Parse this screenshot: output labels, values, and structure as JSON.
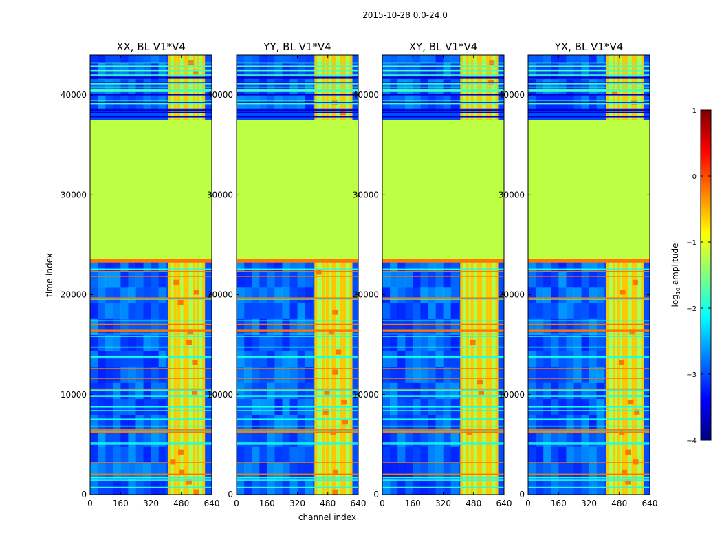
{
  "figure_title": "2015-10-28 0.0-24.0",
  "chart_data": {
    "type": "heatmap",
    "title": "2015-10-28 0.0-24.0",
    "xlabel": "channel index",
    "ylabel": "time index",
    "xlim": [
      0,
      640
    ],
    "ylim": [
      0,
      44000
    ],
    "x_ticks": [
      0,
      160,
      320,
      480,
      640
    ],
    "y_ticks": [
      0,
      10000,
      20000,
      30000,
      40000
    ],
    "panels": [
      {
        "title": "XX, BL V1*V4",
        "bright_columns": [
          410,
          440,
          460,
          490,
          505,
          540,
          560,
          590
        ]
      },
      {
        "title": "YY, BL V1*V4",
        "bright_columns": [
          410,
          450,
          470,
          500,
          510,
          545,
          560,
          595
        ]
      },
      {
        "title": "XY, BL V1*V4",
        "bright_columns": [
          410,
          440,
          465,
          495,
          510,
          545,
          560,
          595
        ]
      },
      {
        "title": "YX, BL V1*V4",
        "bright_columns": [
          410,
          445,
          470,
          495,
          510,
          545,
          560,
          595
        ]
      }
    ],
    "flagged_time_range": [
      23500,
      37500
    ],
    "flagged_value": -1.2,
    "background_value": -3.0,
    "high_amplitude_channels": [
      410,
      600
    ],
    "colorbar": {
      "label": "log10 amplitude",
      "label_main": "log",
      "label_sub": "10",
      "label_suffix": " amplitude",
      "range": [
        -4,
        1
      ],
      "ticks": [
        -4,
        -3,
        -2,
        -1,
        0,
        1
      ],
      "tick_labels": [
        "−4",
        "−3",
        "−2",
        "−1",
        "0",
        "1"
      ],
      "colormap": "jet"
    }
  }
}
